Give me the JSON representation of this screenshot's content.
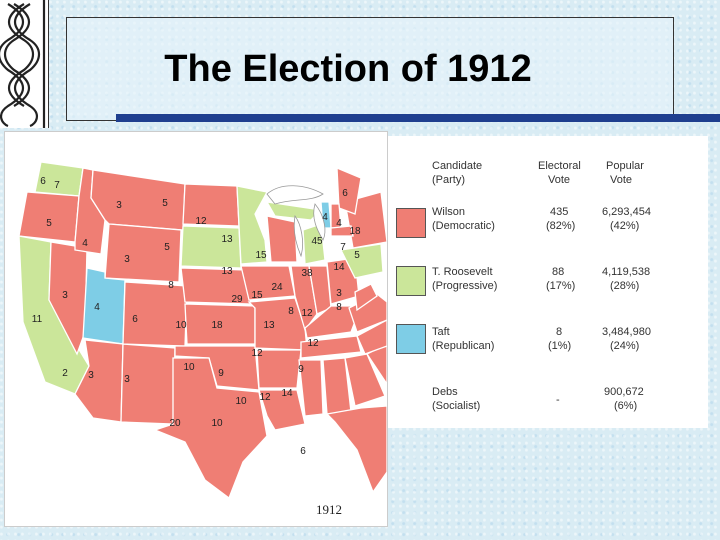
{
  "title": "The Election of 1912",
  "year": "1912",
  "colors": {
    "wilson": "#ef7e74",
    "roosevelt": "#cbe69a",
    "taft": "#7ecde6",
    "accent_bar": "#1f3f8f"
  },
  "legend": {
    "headers": {
      "candidate": "Candidate",
      "party": "(Party)",
      "electoral": "Electoral",
      "electoral2": "Vote",
      "popular": "Popular",
      "popular2": "Vote"
    },
    "rows": [
      {
        "name": "Wilson",
        "party": "(Democratic)",
        "electoral": "435",
        "electoral_pct": "(82%)",
        "popular": "6,293,454",
        "popular_pct": "(42%)"
      },
      {
        "name": "T. Roosevelt",
        "party": "(Progressive)",
        "electoral": "88",
        "electoral_pct": "(17%)",
        "popular": "4,119,538",
        "popular_pct": "(28%)"
      },
      {
        "name": "Taft",
        "party": "(Republican)",
        "electoral": "8",
        "electoral_pct": "(1%)",
        "popular": "3,484,980",
        "popular_pct": "(24%)"
      },
      {
        "name": "Debs",
        "party": "(Socialist)",
        "electoral": "-",
        "electoral_pct": "",
        "popular": "900,672",
        "popular_pct": "(6%)"
      }
    ]
  },
  "state_votes": {
    "wa": "7",
    "or": "5",
    "ca": "11",
    "nv": "3",
    "id": "4",
    "mt": "3",
    "wy": "3",
    "ut": "4",
    "az": "3",
    "nm": "3",
    "co": "6",
    "nd": "5",
    "sd": "5",
    "ne": "8",
    "ks": "10",
    "ok": "10",
    "tx": "20",
    "mn": "12",
    "ia": "13",
    "mo": "18",
    "ar": "9",
    "la": "10",
    "wi": "13",
    "il": "29",
    "mi": "15",
    "in": "15",
    "oh": "24",
    "ky": "13",
    "tn": "12",
    "ms": "10",
    "al": "12",
    "ga": "14",
    "fl": "6",
    "sc": "9",
    "nc": "12",
    "va": "12",
    "wv": "8",
    "pa": "38",
    "ny": "45",
    "me": "6",
    "vt": "4",
    "nh": "4",
    "ma": "18",
    "ri": "5",
    "ct": "7",
    "nj": "14",
    "de": "3",
    "md": "8",
    "ca_extra": "2",
    "wa_extra": "6"
  }
}
